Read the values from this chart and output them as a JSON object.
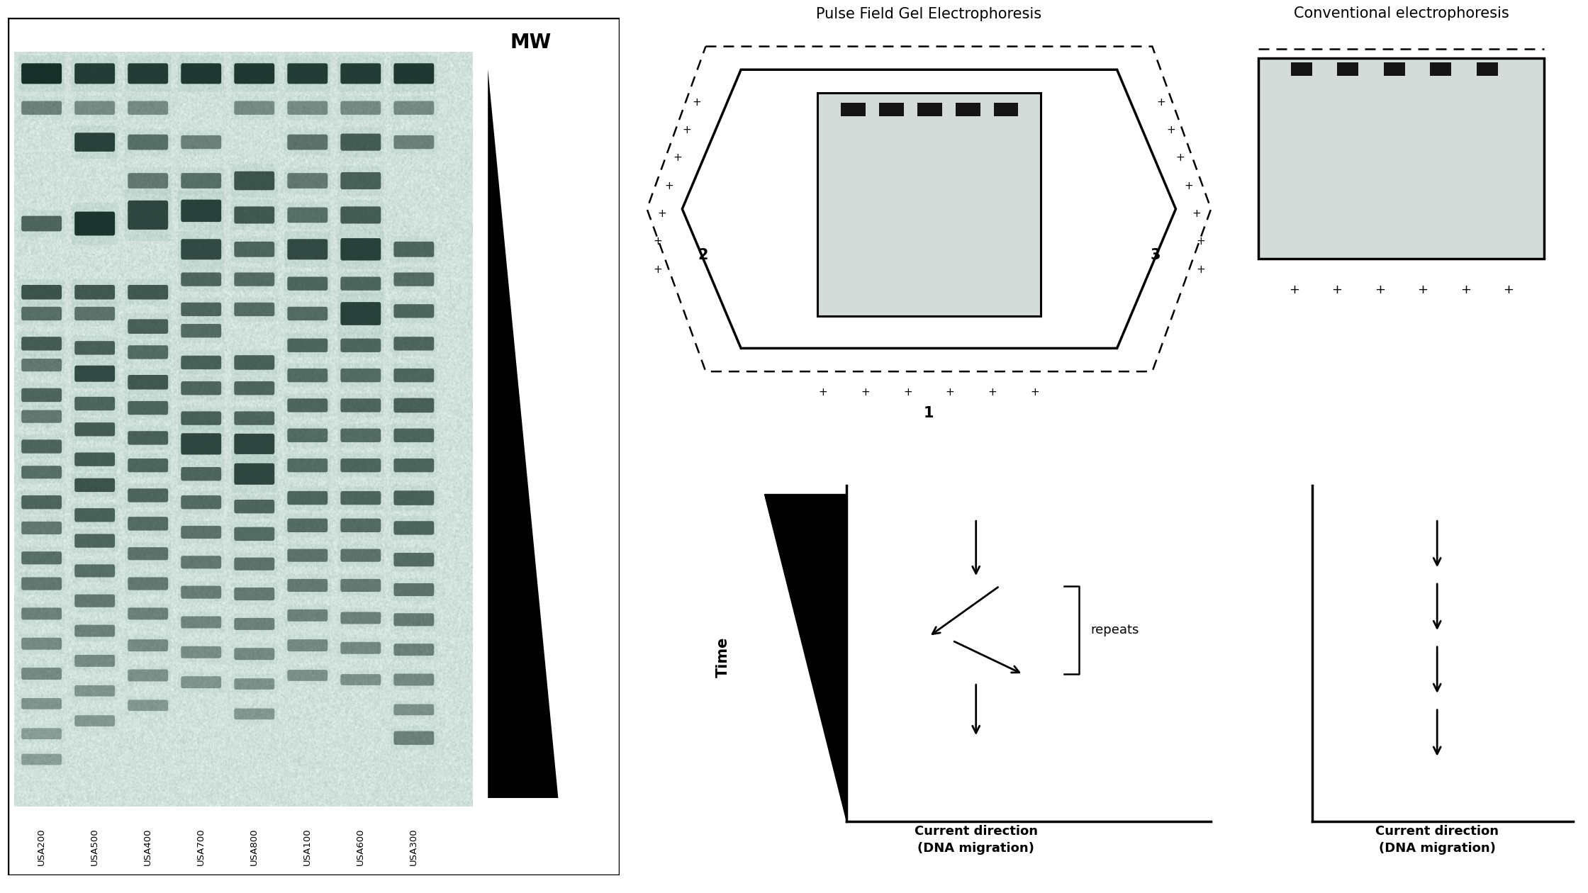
{
  "title_pfge": "Pulse Field Gel Electrophoresis",
  "title_conv": "Conventional electrophoresis",
  "gel_labels": [
    "USA200",
    "USA500",
    "USA400",
    "USA700",
    "USA800",
    "USA100",
    "USA600",
    "USA300"
  ],
  "mw_label": "MW",
  "label1": "1",
  "label2": "2",
  "label3": "3",
  "time_label": "Time",
  "current_label": "Current direction\n(DNA migration)",
  "repeats_label": "repeats",
  "bg_color": "#ffffff",
  "gel_bg_color": "#c8d8d4",
  "band_dark": "#1a2820",
  "black": "#000000"
}
